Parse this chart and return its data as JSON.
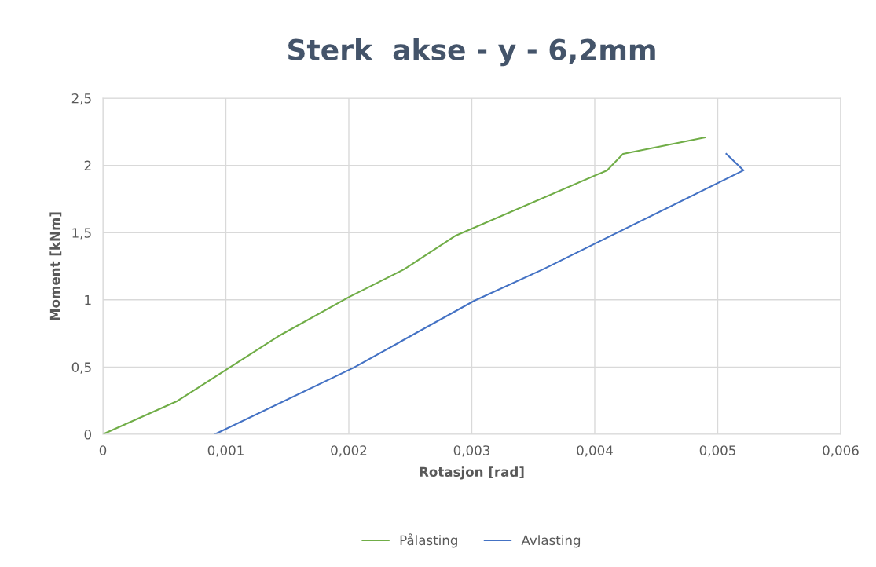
{
  "chart_data": {
    "type": "line",
    "title": "Sterk  akse - y - 6,2mm",
    "xlabel": "Rotasjon [rad]",
    "ylabel": "Moment [kNm]",
    "xlim": [
      0,
      0.006
    ],
    "ylim": [
      0,
      2.5
    ],
    "xticks": [
      {
        "value": 0,
        "label": "0"
      },
      {
        "value": 0.001,
        "label": "0,001"
      },
      {
        "value": 0.002,
        "label": "0,002"
      },
      {
        "value": 0.003,
        "label": "0,003"
      },
      {
        "value": 0.004,
        "label": "0,004"
      },
      {
        "value": 0.005,
        "label": "0,005"
      },
      {
        "value": 0.006,
        "label": "0,006"
      }
    ],
    "yticks": [
      {
        "value": 0,
        "label": "0"
      },
      {
        "value": 0.5,
        "label": "0,5"
      },
      {
        "value": 1,
        "label": "1"
      },
      {
        "value": 1.5,
        "label": "1,5"
      },
      {
        "value": 2,
        "label": "2"
      },
      {
        "value": 2.5,
        "label": "2,5"
      }
    ],
    "grid": true,
    "legend": "bottom",
    "marker": "none",
    "line_style": "solid",
    "series": [
      {
        "name": "Pålasting",
        "color": "#70ad47",
        "x": [
          0,
          0.0006,
          0.00144,
          0.002,
          0.00245,
          0.00287,
          0.0041,
          0.00423,
          0.0049
        ],
        "values": [
          0,
          0.245,
          0.736,
          1.02,
          1.227,
          1.478,
          1.963,
          2.085,
          2.208
        ]
      },
      {
        "name": "Avlasting",
        "color": "#4472c4",
        "x": [
          0.00091,
          0.00204,
          0.00302,
          0.00359,
          0.00521,
          0.00507
        ],
        "values": [
          0,
          0.496,
          0.993,
          1.232,
          1.963,
          2.085
        ]
      }
    ]
  }
}
